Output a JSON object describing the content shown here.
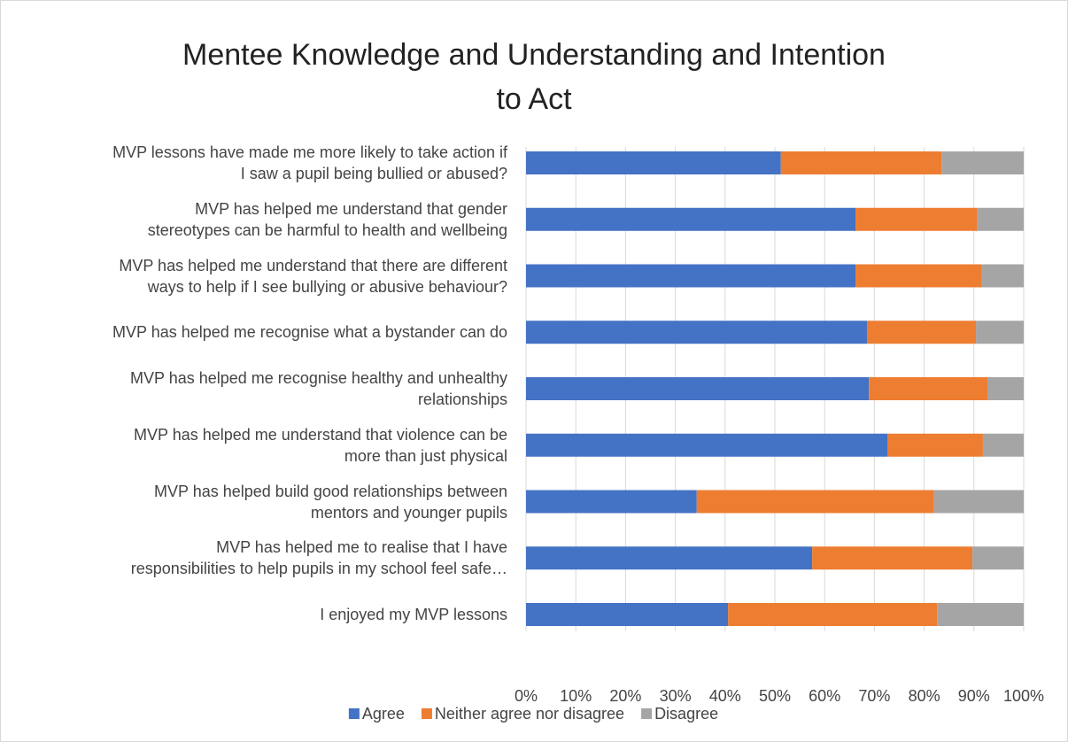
{
  "chart_data": {
    "type": "stacked-bar-horizontal",
    "title": "Mentee Knowledge and Understanding and Intention\nto Act",
    "categories": [
      "MVP lessons have made me more likely to take action if\nI saw a pupil being bullied or abused?",
      "MVP has helped me understand that gender\nstereotypes can be harmful to health and wellbeing",
      "MVP has helped me understand that there are different\nways to help if I see bullying or abusive behaviour?",
      "MVP has helped me recognise what a bystander can do",
      "MVP has helped me recognise healthy and unhealthy\nrelationships",
      "MVP has helped me understand that violence can be\nmore than just physical",
      "MVP has helped build good relationships between\nmentors and younger pupils",
      "MVP has helped me to realise that I have\nresponsibilities to help pupils in my school feel safe…",
      "I enjoyed my MVP lessons"
    ],
    "series": [
      {
        "name": "Agree",
        "color": "#4472c4",
        "values": [
          51.2,
          66.2,
          66.2,
          68.5,
          68.9,
          72.6,
          34.3,
          57.5,
          40.6
        ]
      },
      {
        "name": "Neither agree nor disagree",
        "color": "#ed7d31",
        "values": [
          32.3,
          24.5,
          25.4,
          21.9,
          23.8,
          19.2,
          47.7,
          32.2,
          42.0
        ]
      },
      {
        "name": "Disagree",
        "color": "#a5a5a5",
        "values": [
          16.5,
          9.3,
          8.4,
          9.6,
          7.3,
          8.2,
          18.0,
          10.3,
          17.4
        ]
      }
    ],
    "xlim": [
      0,
      100
    ],
    "xticks": [
      {
        "value": 0,
        "label": "0%"
      },
      {
        "value": 10,
        "label": "10%"
      },
      {
        "value": 20,
        "label": "20%"
      },
      {
        "value": 30,
        "label": "30%"
      },
      {
        "value": 40,
        "label": "40%"
      },
      {
        "value": 50,
        "label": "50%"
      },
      {
        "value": 60,
        "label": "60%"
      },
      {
        "value": 70,
        "label": "70%"
      },
      {
        "value": 80,
        "label": "80%"
      },
      {
        "value": 90,
        "label": "90%"
      },
      {
        "value": 100,
        "label": "100%"
      }
    ],
    "grid": true,
    "legend": "bottom"
  }
}
